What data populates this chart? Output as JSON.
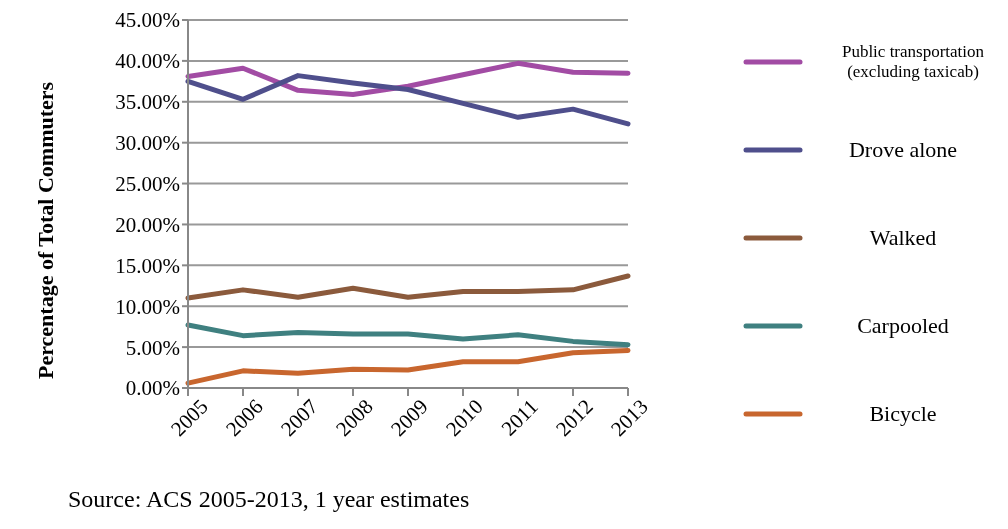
{
  "chart_data": {
    "type": "line",
    "ylabel": "Percentage of Total Commuters",
    "annotations": [
      "Source: ACS 2005-2013, 1 year estimates"
    ],
    "categories": [
      "2005",
      "2006",
      "2007",
      "2008",
      "2009",
      "2010",
      "2011",
      "2012",
      "2013"
    ],
    "series": [
      {
        "name": "Public transportation (excluding taxicab)",
        "color": "#a24ca4",
        "values": [
          38.1,
          39.1,
          36.4,
          35.9,
          36.9,
          38.3,
          39.7,
          38.6,
          38.5
        ]
      },
      {
        "name": "Drove alone",
        "color": "#4f4f8c",
        "values": [
          37.5,
          35.3,
          38.2,
          37.3,
          36.5,
          34.8,
          33.1,
          34.1,
          32.3
        ]
      },
      {
        "name": "Walked",
        "color": "#8b5a3c",
        "values": [
          11.0,
          12.0,
          11.1,
          12.2,
          11.1,
          11.8,
          11.8,
          12.0,
          13.7
        ]
      },
      {
        "name": "Carpooled",
        "color": "#3f8080",
        "values": [
          7.7,
          6.4,
          6.8,
          6.6,
          6.6,
          6.0,
          6.5,
          5.7,
          5.3
        ]
      },
      {
        "name": "Bicycle",
        "color": "#c8662e",
        "values": [
          0.6,
          2.1,
          1.8,
          2.3,
          2.2,
          3.2,
          3.2,
          4.3,
          4.6
        ]
      }
    ],
    "ylim": [
      0,
      45
    ],
    "yticks": [
      {
        "value": 0,
        "label": "0.00%"
      },
      {
        "value": 5,
        "label": "5.00%"
      },
      {
        "value": 10,
        "label": "10.00%"
      },
      {
        "value": 15,
        "label": "15.00%"
      },
      {
        "value": 20,
        "label": "20.00%"
      },
      {
        "value": 25,
        "label": "25.00%"
      },
      {
        "value": 30,
        "label": "30.00%"
      },
      {
        "value": 35,
        "label": "35.00%"
      },
      {
        "value": 40,
        "label": "40.00%"
      },
      {
        "value": 45,
        "label": "45.00%"
      }
    ],
    "grid": "y",
    "legend": "right",
    "marker": "none",
    "line_style": "solid"
  }
}
